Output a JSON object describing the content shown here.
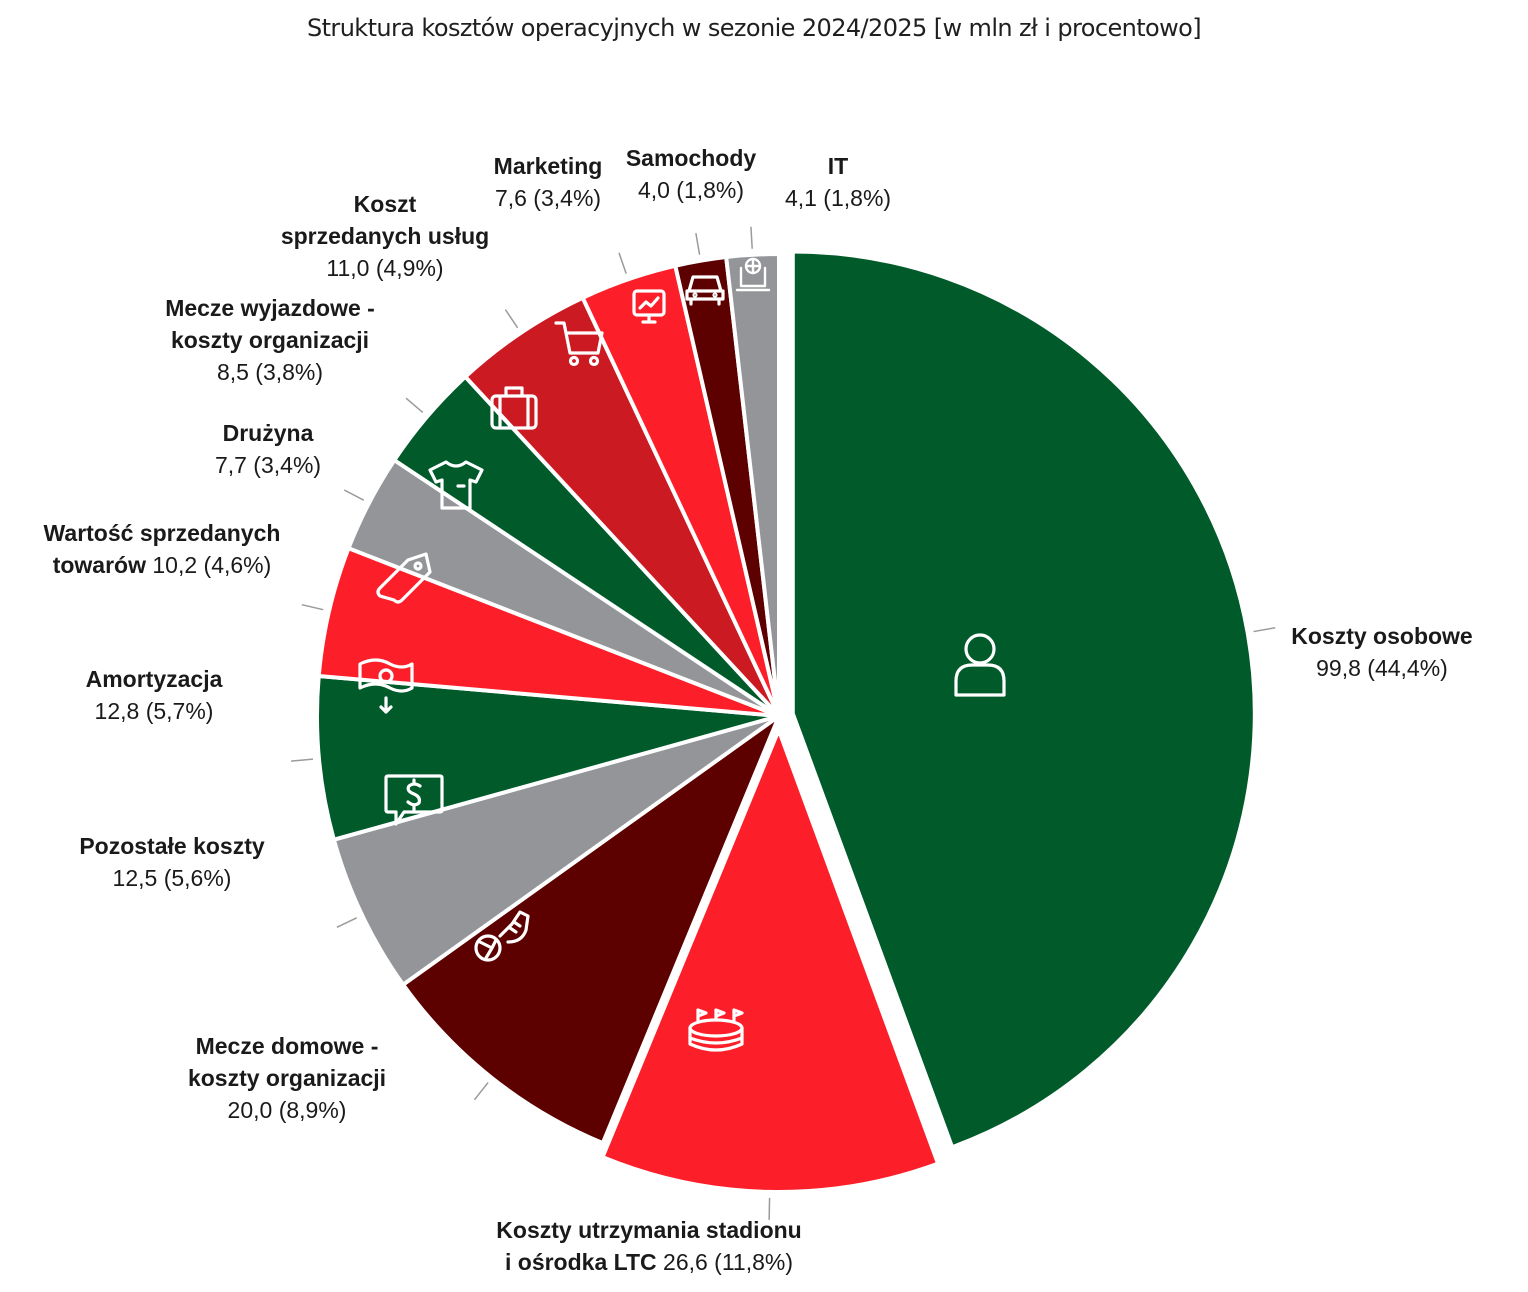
{
  "title": "Struktura kosztów operacyjnych w sezonie 2024/2025 [w mln zł i procentowo]",
  "chart_data": {
    "type": "pie",
    "title": "Struktura kosztów operacyjnych w sezonie 2024/2025 [w mln zł i procentowo]",
    "unit": "mln zł",
    "slices": [
      {
        "label": "Koszty osobowe",
        "value": 99.8,
        "value_label": "99,8 (44,4%)",
        "color": "#005a2a",
        "icon": "person-icon",
        "exploded": true
      },
      {
        "label": "Koszty utrzymania stadionu i ośrodka LTC",
        "value": 26.6,
        "value_label": "26,6 (11,8%)",
        "color": "#fc1f2a",
        "icon": "stadium-icon",
        "exploded": true
      },
      {
        "label": "Mecze domowe - koszty organizacji",
        "value": 20.0,
        "value_label": "20,0 (8,9%)",
        "color": "#5c0000",
        "icon": "football-boot-icon"
      },
      {
        "label": "Pozostałe koszty",
        "value": 12.5,
        "value_label": "12,5 (5,6%)",
        "color": "#949599",
        "icon": "money-chat-icon"
      },
      {
        "label": "Amortyzacja",
        "value": 12.8,
        "value_label": "12,8 (5,7%)",
        "color": "#005a2a",
        "icon": "banknote-down-icon"
      },
      {
        "label": "Wartość sprzedanych towarów",
        "value": 10.2,
        "value_label": "10,2 (4,6%)",
        "color": "#fc1f2a",
        "icon": "price-tag-icon"
      },
      {
        "label": "Drużyna",
        "value": 7.7,
        "value_label": "7,7 (3,4%)",
        "color": "#949599",
        "icon": "jersey-icon"
      },
      {
        "label": "Mecze wyjazdowe - koszty organizacji",
        "value": 8.5,
        "value_label": "8,5 (3,8%)",
        "color": "#005a2a",
        "icon": "suitcase-icon"
      },
      {
        "label": "Koszt sprzedanych usług",
        "value": 11.0,
        "value_label": "11,0 (4,9%)",
        "color": "#cc1a22",
        "icon": "shopping-cart-icon"
      },
      {
        "label": "Marketing",
        "value": 7.6,
        "value_label": "7,6 (3,4%)",
        "color": "#fc1f2a",
        "icon": "presentation-chart-icon"
      },
      {
        "label": "Samochody",
        "value": 4.0,
        "value_label": "4,0 (1,8%)",
        "color": "#5c0000",
        "icon": "car-icon"
      },
      {
        "label": "IT",
        "value": 4.1,
        "value_label": "4,1 (1,8%)",
        "color": "#949599",
        "icon": "laptop-network-icon"
      }
    ]
  },
  "labels": {
    "osobowe": {
      "l1": "Koszty osobowe",
      "v": "99,8 (44,4%)"
    },
    "stadion": {
      "l1": "Koszty utrzymania stadionu",
      "l2": "i ośrodka LTC",
      "v": "26,6 (11,8%)"
    },
    "domowe": {
      "l1": "Mecze domowe -",
      "l2": "koszty organizacji",
      "v": "20,0 (8,9%)"
    },
    "pozostale": {
      "l1": "Pozostałe koszty",
      "v": "12,5 (5,6%)"
    },
    "amortyzacja": {
      "l1": "Amortyzacja",
      "v": "12,8 (5,7%)"
    },
    "towary": {
      "l1": "Wartość sprzedanych",
      "l2": "towarów",
      "v": "10,2 (4,6%)"
    },
    "druzyna": {
      "l1": "Drużyna",
      "v": "7,7 (3,4%)"
    },
    "wyjazdowe": {
      "l1": "Mecze wyjazdowe -",
      "l2": "koszty organizacji",
      "v": "8,5 (3,8%)"
    },
    "uslugi": {
      "l1": "Koszt",
      "l2": "sprzedanych usług",
      "v": "11,0 (4,9%)"
    },
    "marketing": {
      "l1": "Marketing",
      "v": "7,6 (3,4%)"
    },
    "samochody": {
      "l1": "Samochody",
      "v": "4,0 (1,8%)"
    },
    "it": {
      "l1": "IT",
      "v": "4,1 (1,8%)"
    }
  }
}
